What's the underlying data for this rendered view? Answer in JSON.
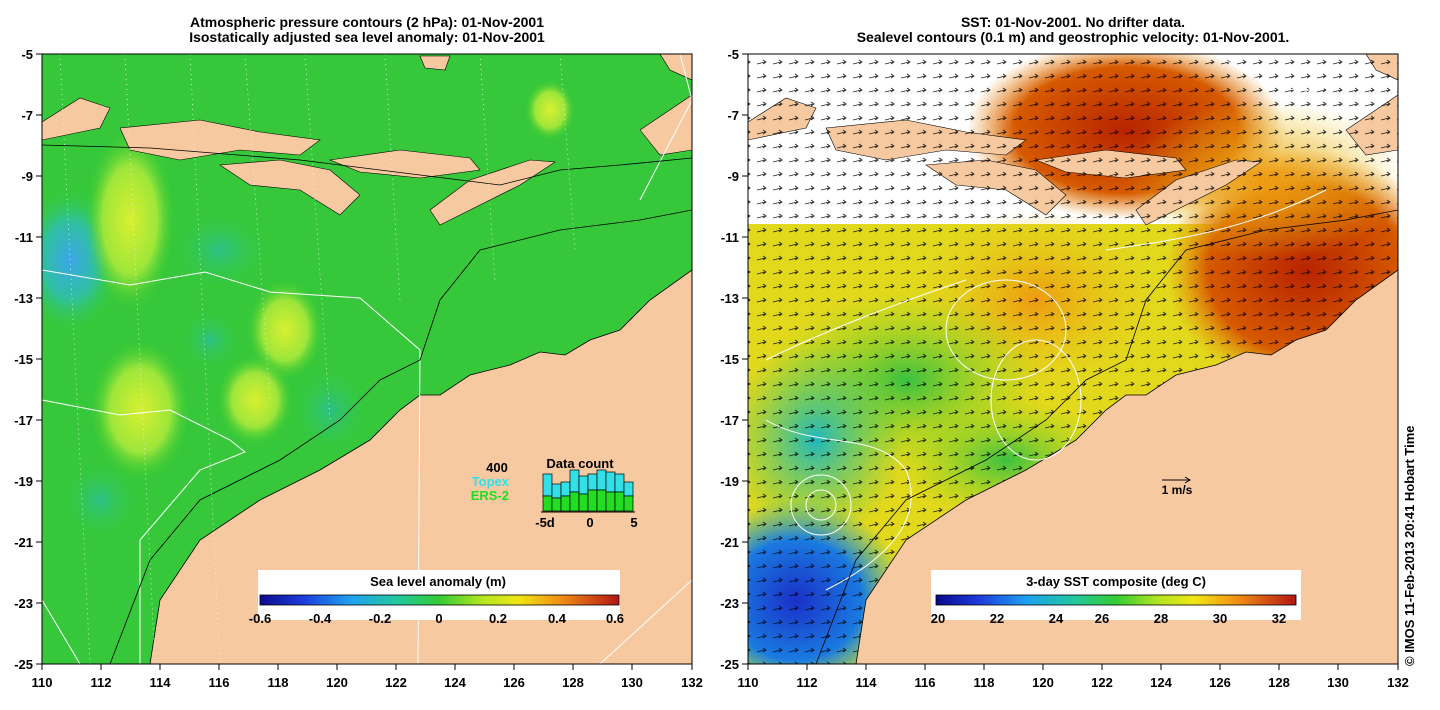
{
  "left_panel": {
    "title_line1": "Atmospheric pressure contours (2 hPa): 01-Nov-2001",
    "title_line2": "Isostatically adjusted sea level anomaly: 01-Nov-2001",
    "colorbar_label": "Sea level anomaly (m)",
    "colorbar_ticks": [
      "-0.6",
      "-0.4",
      "-0.2",
      "0",
      "0.2",
      "0.4",
      "0.6"
    ],
    "inset": {
      "value_label": "400",
      "satellite1": "Topex",
      "satellite2": "ERS-2",
      "title": "Data count",
      "axis_ticks": [
        "-5d",
        "0",
        "5"
      ]
    }
  },
  "right_panel": {
    "title_line1": "SST: 01-Nov-2001. No drifter data.",
    "title_line2": "Sealevel contours (0.1 m) and geostrophic velocity: 01-Nov-2001.",
    "colorbar_label": "3-day SST composite (deg C)",
    "colorbar_ticks": [
      "20",
      "22",
      "24",
      "26",
      "28",
      "30",
      "32"
    ],
    "scale_label": "1 m/s"
  },
  "axes": {
    "y_ticks": [
      "-5",
      "-7",
      "-9",
      "-11",
      "-13",
      "-15",
      "-17",
      "-19",
      "-21",
      "-23",
      "-25"
    ],
    "x_ticks": [
      "110",
      "112",
      "114",
      "116",
      "118",
      "120",
      "122",
      "124",
      "126",
      "128",
      "130",
      "132"
    ]
  },
  "credit": "© IMOS 11-Feb-2013 20:41 Hobart Time",
  "colors": {
    "land": "#f7c9a0",
    "ocean_sla": "#33cc33",
    "sst_warm": "#c03a00",
    "sst_cool": "#1a4fd6"
  }
}
